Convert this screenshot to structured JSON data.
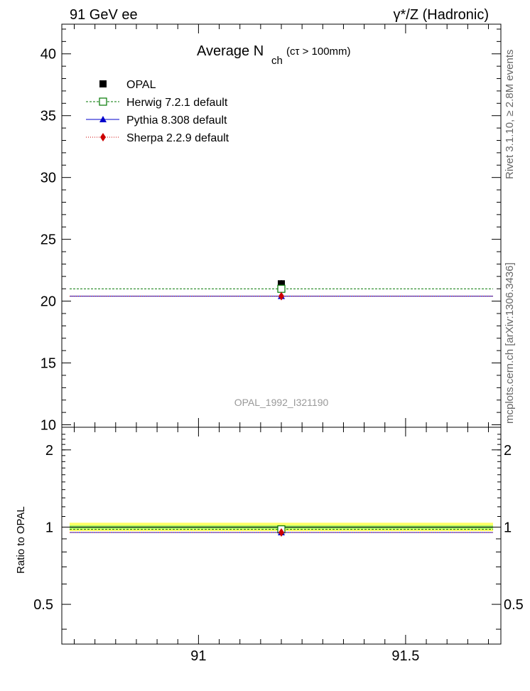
{
  "header": {
    "left_label": "91 GeV ee",
    "right_label": "γ*/Z (Hadronic)"
  },
  "side_labels": {
    "rivet": "Rivet 3.1.10, ≥ 2.8M events",
    "mcplots": "mcplots.cern.ch [arXiv:1306.3436]"
  },
  "analysis_id": "OPAL_1992_I321190",
  "chart_data": [
    {
      "type": "scatter",
      "panel": "main",
      "title": "Average N",
      "title_sub": "ch",
      "title_suffix": "(cτ > 100mm)",
      "xlabel": "",
      "ylabel": "",
      "xlim": [
        90.67,
        91.73
      ],
      "ylim": [
        9.8,
        42.4
      ],
      "yticks": [
        10,
        15,
        20,
        25,
        30,
        35,
        40
      ],
      "grid": false,
      "legend_position": "top-left",
      "series": [
        {
          "name": "OPAL",
          "style": "data",
          "color": "#000000",
          "marker": "square-filled",
          "x": [
            91.2
          ],
          "y": [
            21.4
          ],
          "yerr": 0.3
        },
        {
          "name": "Herwig 7.2.1 default",
          "style": "mc",
          "color": "#007700",
          "marker": "square-open",
          "line": "dashed",
          "x": [
            91.2
          ],
          "y": [
            21.0
          ]
        },
        {
          "name": "Pythia 8.308 default",
          "style": "mc",
          "color": "#0000cc",
          "marker": "triangle-filled",
          "line": "solid",
          "x": [
            91.2
          ],
          "y": [
            20.4
          ]
        },
        {
          "name": "Sherpa 2.2.9 default",
          "style": "mc",
          "color": "#cc0000",
          "marker": "diamond-filled",
          "line": "dotted",
          "x": [
            91.2
          ],
          "y": [
            20.4
          ]
        }
      ]
    },
    {
      "type": "scatter",
      "panel": "ratio",
      "ylabel": "Ratio to OPAL",
      "xlim": [
        90.67,
        91.73
      ],
      "ylim": [
        0.35,
        2.45
      ],
      "log_y": true,
      "yticks": [
        0.5,
        1,
        2
      ],
      "xticks": [
        91,
        91.5
      ],
      "band_inner": [
        0.985,
        1.015
      ],
      "band_outer": [
        0.965,
        1.04
      ],
      "series": [
        {
          "name": "Herwig 7.2.1 default",
          "color": "#007700",
          "x": [
            91.2
          ],
          "y": [
            0.98
          ]
        },
        {
          "name": "Pythia 8.308 default",
          "color": "#0000cc",
          "x": [
            91.2
          ],
          "y": [
            0.953
          ]
        },
        {
          "name": "Sherpa 2.2.9 default",
          "color": "#cc0000",
          "x": [
            91.2
          ],
          "y": [
            0.953
          ]
        }
      ]
    }
  ]
}
